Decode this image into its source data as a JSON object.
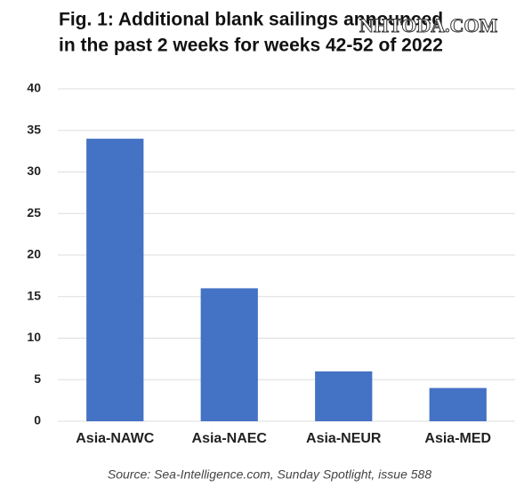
{
  "chart_data": {
    "type": "bar",
    "title": [
      "Fig. 1: Additional blank sailings announced",
      "in the past 2 weeks for weeks 42-52 of 2022"
    ],
    "watermark": "NHTODA.COM",
    "categories": [
      "Asia-NAWC",
      "Asia-NAEC",
      "Asia-NEUR",
      "Asia-MED"
    ],
    "values": [
      34,
      16,
      6,
      4
    ],
    "color": "#4472c4",
    "ylim": [
      0,
      40
    ],
    "yticks": [
      0,
      5,
      10,
      15,
      20,
      25,
      30,
      35,
      40
    ],
    "grid": true,
    "source": "Source: Sea-Intelligence.com, Sunday Spotlight, issue 588"
  }
}
